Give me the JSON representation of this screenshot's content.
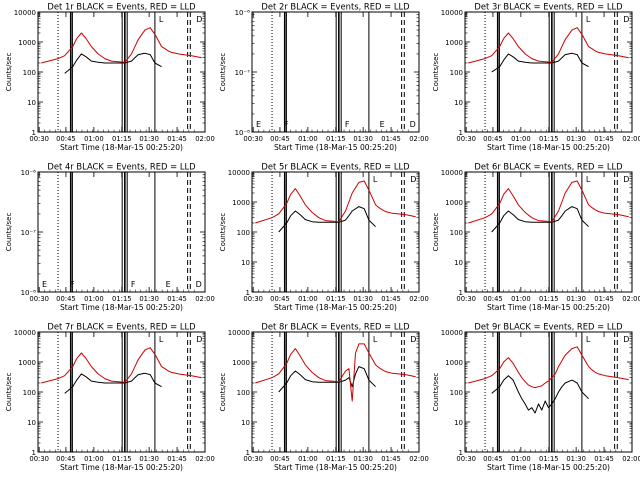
{
  "figure": {
    "time_ticks": [
      "00:30",
      "00:45",
      "01:00",
      "01:15",
      "01:30",
      "01:45",
      "02:00"
    ],
    "xlabel": "Start Time (18-Mar-15 00:25:20)"
  },
  "colors": {
    "events": "#000000",
    "lld": "#cc0000",
    "axes": "#000000",
    "background": "#ffffff"
  },
  "chart_data": [
    {
      "type": "line",
      "title": "Det 1r BLACK = Events, RED = LLD",
      "ylabel": "Counts/sec",
      "yscale": "log",
      "ylim": [
        1,
        10000
      ],
      "yticks": [
        "1",
        "10",
        "100",
        "1000",
        "10000"
      ],
      "has_data": true,
      "x": [
        0.5,
        3.0,
        4.0,
        5.2,
        5.8,
        6.5,
        7.2,
        8.0,
        9.0,
        10.0,
        11.0,
        12.0,
        13.0,
        14.0,
        14.5,
        15.0,
        16.0,
        16.8,
        17.5,
        18.5,
        19.0,
        19.5,
        20.0,
        21.0,
        23.0,
        24.5
      ],
      "series": [
        {
          "name": "BLACK = Events",
          "values": [
            null,
            null,
            90,
            150,
            250,
            400,
            320,
            230,
            210,
            200,
            200,
            200,
            200,
            230,
            300,
            380,
            420,
            380,
            200,
            150,
            null,
            null,
            null,
            null,
            null,
            null
          ]
        },
        {
          "name": "RED = LLD",
          "values": [
            200,
            280,
            350,
            700,
            1300,
            2000,
            1300,
            700,
            400,
            280,
            230,
            220,
            210,
            400,
            700,
            1200,
            2500,
            3000,
            1800,
            700,
            600,
            500,
            450,
            400,
            350,
            300
          ]
        }
      ],
      "markers": [
        {
          "x": 17.8,
          "label": "L"
        },
        {
          "x": 23.4,
          "label": "D"
        }
      ]
    },
    {
      "type": "line",
      "title": "Det 2r BLACK = Events, RED = LLD",
      "ylabel": "Counts/sec",
      "yscale": "log",
      "ylim": [
        1e-08,
        1e-06
      ],
      "yticks": [
        "10⁻⁸",
        "10⁻⁷",
        "10⁻⁶"
      ],
      "has_data": false,
      "x": [],
      "series": [],
      "markers": [
        {
          "x": 0.3,
          "label": "E"
        },
        {
          "x": 4.5,
          "label": "F"
        },
        {
          "x": 13.6,
          "label": "F"
        },
        {
          "x": 18.8,
          "label": "E"
        },
        {
          "x": 23.3,
          "label": "D"
        }
      ]
    },
    {
      "type": "line",
      "title": "Det 3r BLACK = Events, RED = LLD",
      "ylabel": "Counts/sec",
      "yscale": "log",
      "ylim": [
        1,
        10000
      ],
      "yticks": [
        "1",
        "10",
        "100",
        "1000",
        "10000"
      ],
      "has_data": true,
      "x": [
        0.5,
        3.0,
        4.0,
        5.2,
        5.8,
        6.5,
        7.2,
        8.0,
        9.0,
        10.0,
        11.0,
        12.0,
        13.0,
        14.0,
        14.5,
        15.0,
        16.0,
        16.8,
        17.5,
        18.5,
        19.0,
        19.5,
        20.0,
        21.0,
        23.0,
        24.5
      ],
      "series": [
        {
          "name": "BLACK = Events",
          "values": [
            null,
            null,
            100,
            150,
            250,
            400,
            320,
            230,
            210,
            200,
            200,
            200,
            200,
            230,
            300,
            380,
            420,
            380,
            200,
            150,
            null,
            null,
            null,
            null,
            null,
            null
          ]
        },
        {
          "name": "RED = LLD",
          "values": [
            200,
            280,
            350,
            700,
            1300,
            2000,
            1300,
            700,
            400,
            280,
            230,
            220,
            210,
            400,
            700,
            1200,
            2500,
            3000,
            1800,
            700,
            600,
            500,
            450,
            400,
            350,
            300
          ]
        }
      ],
      "markers": [
        {
          "x": 17.8,
          "label": "L"
        },
        {
          "x": 23.4,
          "label": "D"
        }
      ]
    },
    {
      "type": "line",
      "title": "Det 4r BLACK = Events, RED = LLD",
      "ylabel": "Counts/sec",
      "yscale": "log",
      "ylim": [
        1e-08,
        1e-06
      ],
      "yticks": [
        "10⁻⁸",
        "10⁻⁷",
        "10⁻⁶"
      ],
      "has_data": false,
      "x": [],
      "series": [],
      "markers": [
        {
          "x": 0.3,
          "label": "E"
        },
        {
          "x": 4.5,
          "label": "F"
        },
        {
          "x": 13.6,
          "label": "F"
        },
        {
          "x": 18.8,
          "label": "E"
        },
        {
          "x": 23.3,
          "label": "D"
        }
      ]
    },
    {
      "type": "line",
      "title": "Det 5r BLACK = Events, RED = LLD",
      "ylabel": "Counts/sec",
      "yscale": "log",
      "ylim": [
        1,
        10000
      ],
      "yticks": [
        "1",
        "10",
        "100",
        "1000",
        "10000"
      ],
      "has_data": true,
      "x": [
        0.5,
        3.0,
        4.0,
        5.2,
        5.8,
        6.5,
        7.2,
        8.0,
        9.0,
        10.0,
        11.0,
        12.0,
        13.0,
        14.0,
        14.5,
        15.0,
        16.0,
        16.8,
        17.5,
        18.5,
        19.0,
        19.5,
        20.0,
        21.0,
        23.0,
        24.5
      ],
      "series": [
        {
          "name": "BLACK = Events",
          "values": [
            null,
            null,
            100,
            200,
            350,
            500,
            380,
            260,
            220,
            210,
            210,
            210,
            210,
            250,
            350,
            500,
            700,
            600,
            250,
            150,
            null,
            null,
            null,
            null,
            null,
            null
          ]
        },
        {
          "name": "RED = LLD",
          "values": [
            200,
            300,
            400,
            900,
            1800,
            2800,
            1600,
            800,
            450,
            300,
            240,
            230,
            220,
            500,
            1000,
            2000,
            4500,
            5000,
            2500,
            800,
            650,
            550,
            480,
            420,
            380,
            320
          ]
        }
      ],
      "markers": [
        {
          "x": 17.8,
          "label": "L"
        },
        {
          "x": 23.4,
          "label": "D"
        }
      ]
    },
    {
      "type": "line",
      "title": "Det 6r BLACK = Events, RED = LLD",
      "ylabel": "Counts/sec",
      "yscale": "log",
      "ylim": [
        1,
        10000
      ],
      "yticks": [
        "1",
        "10",
        "100",
        "1000",
        "10000"
      ],
      "has_data": true,
      "x": [
        0.5,
        3.0,
        4.0,
        5.2,
        5.8,
        6.5,
        7.2,
        8.0,
        9.0,
        10.0,
        11.0,
        12.0,
        13.0,
        14.0,
        14.5,
        15.0,
        16.0,
        16.8,
        17.5,
        18.5,
        19.0,
        19.5,
        20.0,
        21.0,
        23.0,
        24.5
      ],
      "series": [
        {
          "name": "BLACK = Events",
          "values": [
            null,
            null,
            100,
            200,
            350,
            500,
            380,
            260,
            220,
            210,
            210,
            210,
            210,
            250,
            350,
            500,
            700,
            600,
            250,
            150,
            null,
            null,
            null,
            null,
            null,
            null
          ]
        },
        {
          "name": "RED = LLD",
          "values": [
            200,
            300,
            400,
            900,
            1800,
            2800,
            1600,
            800,
            450,
            300,
            240,
            230,
            220,
            500,
            1000,
            2000,
            4500,
            5000,
            2500,
            800,
            650,
            550,
            480,
            420,
            380,
            320
          ]
        }
      ],
      "markers": [
        {
          "x": 17.8,
          "label": "L"
        },
        {
          "x": 23.4,
          "label": "D"
        }
      ]
    },
    {
      "type": "line",
      "title": "Det 7r BLACK = Events, RED = LLD",
      "ylabel": "Counts/sec",
      "yscale": "log",
      "ylim": [
        1,
        10000
      ],
      "yticks": [
        "1",
        "10",
        "100",
        "1000",
        "10000"
      ],
      "has_data": true,
      "x": [
        0.5,
        3.0,
        4.0,
        5.2,
        5.8,
        6.5,
        7.2,
        8.0,
        9.0,
        10.0,
        11.0,
        12.0,
        13.0,
        14.0,
        14.5,
        15.0,
        16.0,
        16.8,
        17.5,
        18.5,
        19.0,
        19.5,
        20.0,
        21.0,
        23.0,
        24.5
      ],
      "series": [
        {
          "name": "BLACK = Events",
          "values": [
            null,
            null,
            90,
            150,
            250,
            400,
            320,
            230,
            210,
            200,
            200,
            200,
            200,
            230,
            300,
            380,
            420,
            380,
            200,
            150,
            null,
            null,
            null,
            null,
            null,
            null
          ]
        },
        {
          "name": "RED = LLD",
          "values": [
            200,
            280,
            350,
            700,
            1300,
            2000,
            1300,
            700,
            400,
            280,
            230,
            220,
            210,
            400,
            700,
            1200,
            2500,
            3000,
            1800,
            700,
            600,
            500,
            450,
            400,
            350,
            300
          ]
        }
      ],
      "markers": [
        {
          "x": 17.8,
          "label": "L"
        },
        {
          "x": 23.4,
          "label": "D"
        }
      ]
    },
    {
      "type": "line",
      "title": "Det 8r BLACK = Events, RED = LLD",
      "ylabel": "Counts/sec",
      "yscale": "log",
      "ylim": [
        1,
        10000
      ],
      "yticks": [
        "1",
        "10",
        "100",
        "1000",
        "10000"
      ],
      "has_data": true,
      "x": [
        0.5,
        3.0,
        4.0,
        5.2,
        5.8,
        6.5,
        7.2,
        8.0,
        9.0,
        10.0,
        11.0,
        12.0,
        13.0,
        14.0,
        14.5,
        15.0,
        15.5,
        16.0,
        16.8,
        17.5,
        18.5,
        19.0,
        19.5,
        20.0,
        21.0,
        23.0,
        24.5
      ],
      "series": [
        {
          "name": "BLACK = Events",
          "values": [
            null,
            null,
            100,
            200,
            350,
            500,
            380,
            260,
            220,
            210,
            210,
            210,
            210,
            250,
            300,
            150,
            400,
            700,
            600,
            250,
            150,
            null,
            null,
            null,
            null,
            null,
            null
          ]
        },
        {
          "name": "RED = LLD",
          "values": [
            200,
            300,
            400,
            900,
            1800,
            2800,
            1600,
            800,
            450,
            300,
            240,
            230,
            220,
            500,
            600,
            50,
            2000,
            4000,
            4000,
            2000,
            800,
            650,
            550,
            480,
            420,
            380,
            320
          ]
        }
      ],
      "markers": [
        {
          "x": 17.8,
          "label": "L"
        },
        {
          "x": 23.4,
          "label": "D"
        }
      ]
    },
    {
      "type": "line",
      "title": "Det 9r BLACK = Events, RED = LLD",
      "ylabel": "Counts/sec",
      "yscale": "log",
      "ylim": [
        1,
        10000
      ],
      "yticks": [
        "1",
        "10",
        "100",
        "1000",
        "10000"
      ],
      "has_data": true,
      "x": [
        0.5,
        3.0,
        4.0,
        5.2,
        5.8,
        6.5,
        7.2,
        8.0,
        8.5,
        9.0,
        9.5,
        10.0,
        10.5,
        11.0,
        11.5,
        12.0,
        12.5,
        13.0,
        13.5,
        14.0,
        14.5,
        15.0,
        16.0,
        16.8,
        17.5,
        18.5,
        19.0,
        19.5,
        20.0,
        21.0,
        23.0,
        24.5
      ],
      "series": [
        {
          "name": "BLACK = Events",
          "values": [
            null,
            null,
            90,
            150,
            250,
            350,
            250,
            100,
            60,
            40,
            25,
            30,
            20,
            40,
            25,
            50,
            30,
            40,
            60,
            100,
            150,
            200,
            250,
            200,
            100,
            60,
            null,
            null,
            null,
            null,
            null,
            null
          ]
        },
        {
          "name": "RED = LLD",
          "values": [
            200,
            280,
            350,
            600,
            1000,
            1400,
            900,
            450,
            300,
            220,
            170,
            150,
            140,
            150,
            160,
            200,
            230,
            300,
            400,
            700,
            1100,
            1700,
            2800,
            3200,
            1700,
            700,
            550,
            450,
            400,
            350,
            300,
            260
          ]
        }
      ],
      "markers": [
        {
          "x": 17.8,
          "label": "L"
        },
        {
          "x": 23.4,
          "label": "D"
        }
      ]
    }
  ]
}
